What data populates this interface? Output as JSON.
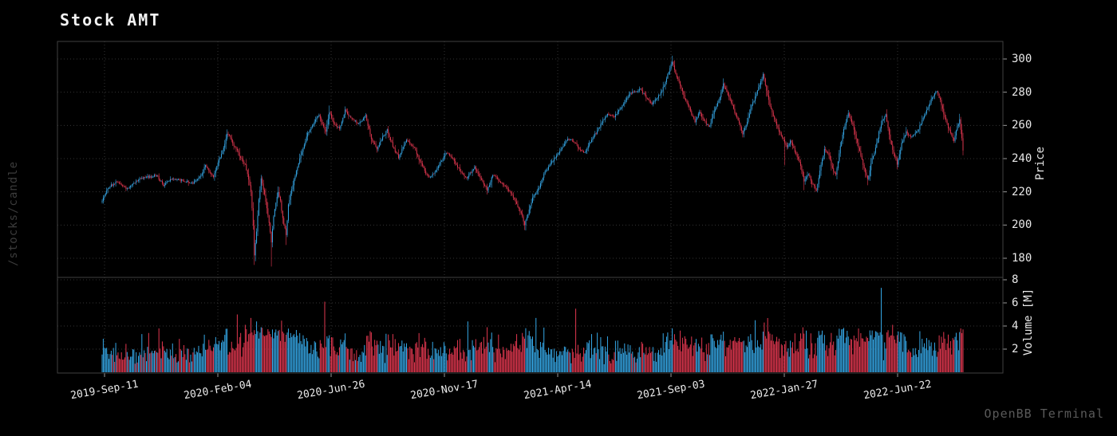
{
  "title": "Stock AMT",
  "watermark": "/stocks/candle",
  "footer_brand": "OpenBB Terminal",
  "colors": {
    "background": "#000000",
    "up": "#35a7e6",
    "down": "#e1374f",
    "grid": "#343434",
    "border": "#404040",
    "tick_mark": "#9a9a9a",
    "axis_text": "#e8e8e8",
    "muted_text": "#5a5a5a",
    "watermark_text": "#3c3c3c",
    "title_text": "#f2f2f2"
  },
  "chart_data": {
    "type": "candlestick",
    "title": "Stock AMT",
    "legend": "none",
    "grid": "dotted",
    "num_candles": 759,
    "seed": 1337,
    "price_axis": {
      "label": "Price",
      "side": "right",
      "ticks": [
        180,
        200,
        220,
        240,
        260,
        280,
        300
      ],
      "ylim": [
        168.5,
        310.5
      ]
    },
    "volume_axis": {
      "label": "Volume [M]",
      "side": "right",
      "ticks": [
        2,
        4,
        6,
        8
      ],
      "ylim": [
        0,
        8.2
      ]
    },
    "x_axis": {
      "ticks": [
        {
          "label": "2019-Sep-11",
          "f": 0.0028
        },
        {
          "label": "2020-Feb-04",
          "f": 0.1344
        },
        {
          "label": "2020-Jun-26",
          "f": 0.266
        },
        {
          "label": "2020-Nov-17",
          "f": 0.3976
        },
        {
          "label": "2021-Apr-14",
          "f": 0.5292
        },
        {
          "label": "2021-Sep-03",
          "f": 0.6608
        },
        {
          "label": "2022-Jan-27",
          "f": 0.7924
        },
        {
          "label": "2022-Jun-22",
          "f": 0.924
        }
      ],
      "label_rotation_deg": -10
    },
    "close_anchors": [
      [
        0,
        215
      ],
      [
        5,
        222
      ],
      [
        12,
        226
      ],
      [
        22,
        222
      ],
      [
        33,
        228
      ],
      [
        48,
        230
      ],
      [
        54,
        224
      ],
      [
        61,
        228
      ],
      [
        70,
        227
      ],
      [
        79,
        225
      ],
      [
        87,
        230
      ],
      [
        91,
        236
      ],
      [
        95,
        232
      ],
      [
        98,
        229
      ],
      [
        103,
        240
      ],
      [
        107,
        246
      ],
      [
        110,
        255
      ],
      [
        113,
        253
      ],
      [
        116,
        248
      ],
      [
        119,
        245
      ],
      [
        122,
        240
      ],
      [
        126,
        236
      ],
      [
        129,
        228
      ],
      [
        131,
        220
      ],
      [
        133,
        200
      ],
      [
        134,
        182
      ],
      [
        136,
        196
      ],
      [
        138,
        215
      ],
      [
        140,
        228
      ],
      [
        142,
        222
      ],
      [
        144,
        214
      ],
      [
        146,
        206
      ],
      [
        148,
        196
      ],
      [
        149,
        190
      ],
      [
        151,
        205
      ],
      [
        153,
        213
      ],
      [
        155,
        220
      ],
      [
        157,
        214
      ],
      [
        159,
        204
      ],
      [
        161,
        198
      ],
      [
        162,
        194
      ],
      [
        164,
        212
      ],
      [
        167,
        222
      ],
      [
        170,
        230
      ],
      [
        174,
        240
      ],
      [
        181,
        255
      ],
      [
        185,
        260
      ],
      [
        191,
        266
      ],
      [
        194,
        261
      ],
      [
        197,
        256
      ],
      [
        200,
        268
      ],
      [
        204,
        261
      ],
      [
        209,
        258
      ],
      [
        214,
        269
      ],
      [
        219,
        264
      ],
      [
        226,
        261
      ],
      [
        232,
        266
      ],
      [
        237,
        252
      ],
      [
        242,
        246
      ],
      [
        247,
        253
      ],
      [
        251,
        257
      ],
      [
        258,
        244
      ],
      [
        261,
        241
      ],
      [
        268,
        251
      ],
      [
        275,
        246
      ],
      [
        281,
        237
      ],
      [
        286,
        230
      ],
      [
        289,
        229
      ],
      [
        293,
        232
      ],
      [
        300,
        240
      ],
      [
        303,
        244
      ],
      [
        309,
        240
      ],
      [
        314,
        234
      ],
      [
        318,
        230
      ],
      [
        321,
        228
      ],
      [
        328,
        235
      ],
      [
        335,
        226
      ],
      [
        339,
        221
      ],
      [
        344,
        230
      ],
      [
        349,
        227
      ],
      [
        354,
        224
      ],
      [
        360,
        219
      ],
      [
        365,
        213
      ],
      [
        369,
        207
      ],
      [
        372,
        200
      ],
      [
        376,
        209
      ],
      [
        379,
        216
      ],
      [
        385,
        223
      ],
      [
        389,
        231
      ],
      [
        395,
        237
      ],
      [
        400,
        242
      ],
      [
        405,
        247
      ],
      [
        410,
        252
      ],
      [
        416,
        250
      ],
      [
        421,
        245
      ],
      [
        425,
        244
      ],
      [
        430,
        250
      ],
      [
        436,
        257
      ],
      [
        440,
        262
      ],
      [
        445,
        267
      ],
      [
        451,
        265
      ],
      [
        456,
        270
      ],
      [
        460,
        274
      ],
      [
        465,
        280
      ],
      [
        470,
        280
      ],
      [
        474,
        282
      ],
      [
        479,
        277
      ],
      [
        484,
        273
      ],
      [
        488,
        276
      ],
      [
        493,
        281
      ],
      [
        497,
        288
      ],
      [
        500,
        295
      ],
      [
        502,
        298
      ],
      [
        505,
        291
      ],
      [
        509,
        284
      ],
      [
        512,
        278
      ],
      [
        516,
        272
      ],
      [
        519,
        267
      ],
      [
        522,
        262
      ],
      [
        526,
        268
      ],
      [
        529,
        264
      ],
      [
        532,
        261
      ],
      [
        535,
        259
      ],
      [
        539,
        269
      ],
      [
        544,
        277
      ],
      [
        547,
        285
      ],
      [
        551,
        278
      ],
      [
        555,
        272
      ],
      [
        558,
        266
      ],
      [
        561,
        261
      ],
      [
        564,
        255
      ],
      [
        568,
        262
      ],
      [
        571,
        270
      ],
      [
        575,
        277
      ],
      [
        578,
        283
      ],
      [
        581,
        288
      ],
      [
        582,
        291
      ],
      [
        585,
        281
      ],
      [
        588,
        272
      ],
      [
        592,
        264
      ],
      [
        595,
        258
      ],
      [
        599,
        253
      ],
      [
        601,
        249
      ],
      [
        603,
        247
      ],
      [
        606,
        251
      ],
      [
        610,
        244
      ],
      [
        615,
        236
      ],
      [
        618,
        227
      ],
      [
        622,
        231
      ],
      [
        625,
        225
      ],
      [
        629,
        221
      ],
      [
        633,
        237
      ],
      [
        636,
        245
      ],
      [
        640,
        242
      ],
      [
        643,
        234
      ],
      [
        646,
        230
      ],
      [
        650,
        247
      ],
      [
        653,
        258
      ],
      [
        657,
        267
      ],
      [
        661,
        261
      ],
      [
        664,
        252
      ],
      [
        668,
        242
      ],
      [
        671,
        234
      ],
      [
        674,
        227
      ],
      [
        677,
        237
      ],
      [
        681,
        246
      ],
      [
        684,
        256
      ],
      [
        687,
        263
      ],
      [
        690,
        267
      ],
      [
        693,
        254
      ],
      [
        697,
        243
      ],
      [
        700,
        237
      ],
      [
        704,
        249
      ],
      [
        708,
        256
      ],
      [
        712,
        253
      ],
      [
        715,
        255
      ],
      [
        719,
        258
      ],
      [
        722,
        263
      ],
      [
        726,
        269
      ],
      [
        729,
        274
      ],
      [
        732,
        278
      ],
      [
        735,
        281
      ],
      [
        738,
        275
      ],
      [
        741,
        267
      ],
      [
        745,
        259
      ],
      [
        748,
        254
      ],
      [
        750,
        251
      ],
      [
        753,
        260
      ],
      [
        755,
        263
      ],
      [
        757,
        252
      ],
      [
        758,
        245
      ]
    ],
    "extremes": [
      {
        "d": 134,
        "low": 176
      },
      {
        "d": 149,
        "low": 175
      },
      {
        "d": 162,
        "low": 188
      },
      {
        "d": 200,
        "high": 272
      },
      {
        "d": 372,
        "low": 197
      },
      {
        "d": 502,
        "high": 302
      },
      {
        "d": 582,
        "high": 292
      },
      {
        "d": 601,
        "low": 236
      },
      {
        "d": 618,
        "low": 221
      },
      {
        "d": 674,
        "low": 224
      }
    ],
    "volume_spikes": [
      [
        1,
        2.9
      ],
      [
        35,
        3.3
      ],
      [
        41,
        3.4
      ],
      [
        119,
        5.0
      ],
      [
        122,
        3.4
      ],
      [
        126,
        4.1
      ],
      [
        131,
        4.7
      ],
      [
        136,
        4.4
      ],
      [
        140,
        3.9
      ],
      [
        144,
        3.2
      ],
      [
        169,
        3.3
      ],
      [
        196,
        6.1
      ],
      [
        240,
        2.8
      ],
      [
        322,
        4.4
      ],
      [
        339,
        3.9
      ],
      [
        365,
        3.3
      ],
      [
        370,
        3.4
      ],
      [
        375,
        3.2
      ],
      [
        382,
        4.7
      ],
      [
        417,
        5.5
      ],
      [
        431,
        3.3
      ],
      [
        445,
        3.1
      ],
      [
        514,
        2.9
      ],
      [
        571,
        3.3
      ],
      [
        583,
        4.3
      ],
      [
        620,
        3.6
      ],
      [
        634,
        3.6
      ],
      [
        642,
        3.4
      ],
      [
        686,
        7.3
      ],
      [
        696,
        4.1
      ],
      [
        700,
        3.2
      ]
    ]
  }
}
